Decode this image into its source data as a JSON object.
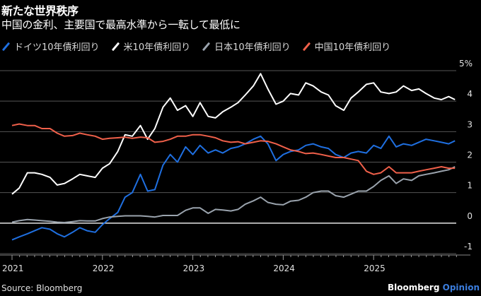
{
  "title": "新たな世界秩序",
  "subtitle": "中国の金利、主要国で最高水準から一転して最低に",
  "source": "Source: Bloomberg",
  "brand": {
    "name": "Bloomberg",
    "suffix": "Opinion"
  },
  "colors": {
    "germany": "#1f6fe0",
    "us": "#ffffff",
    "japan": "#9aa3ad",
    "china": "#f0604a",
    "grid": "#555555",
    "zero": "#e6e6e6",
    "brand_accent": "#3b7ddd"
  },
  "chart_data": {
    "type": "line",
    "title": "新たな世界秩序",
    "subtitle": "中国の金利、主要国で最高水準から一転して最低に",
    "xlabel": "",
    "ylabel": "%",
    "ylim": [
      -1,
      5
    ],
    "yticks": [
      "5%",
      "4",
      "3",
      "2",
      "1",
      "0",
      "-1"
    ],
    "ytick_values": [
      5,
      4,
      3,
      2,
      1,
      0,
      -1
    ],
    "xticks": [
      "2021",
      "2022",
      "2023",
      "2024",
      "2025"
    ],
    "xtick_values": [
      2021.0,
      2022.0,
      2023.0,
      2024.0,
      2025.0
    ],
    "xlim": [
      2020.9,
      2025.95
    ],
    "grid": true,
    "legend_position": "top-left",
    "x": [
      2021.0,
      2021.08,
      2021.17,
      2021.25,
      2021.33,
      2021.42,
      2021.5,
      2021.58,
      2021.67,
      2021.75,
      2021.83,
      2021.92,
      2022.0,
      2022.08,
      2022.17,
      2022.25,
      2022.33,
      2022.42,
      2022.5,
      2022.58,
      2022.67,
      2022.75,
      2022.83,
      2022.92,
      2023.0,
      2023.08,
      2023.17,
      2023.25,
      2023.33,
      2023.42,
      2023.5,
      2023.58,
      2023.67,
      2023.75,
      2023.83,
      2023.92,
      2024.0,
      2024.08,
      2024.17,
      2024.25,
      2024.33,
      2024.42,
      2024.5,
      2024.58,
      2024.67,
      2024.75,
      2024.83,
      2024.92,
      2025.0,
      2025.08,
      2025.17,
      2025.25,
      2025.33,
      2025.42,
      2025.5,
      2025.58,
      2025.67,
      2025.75,
      2025.83,
      2025.9
    ],
    "series": [
      {
        "name": "ドイツ10年債利回り",
        "key": "germany",
        "values": [
          -0.55,
          -0.45,
          -0.35,
          -0.25,
          -0.15,
          -0.2,
          -0.35,
          -0.45,
          -0.3,
          -0.15,
          -0.25,
          -0.3,
          -0.05,
          0.15,
          0.35,
          0.85,
          1.0,
          1.6,
          1.05,
          1.1,
          1.9,
          2.25,
          2.0,
          2.5,
          2.25,
          2.55,
          2.3,
          2.4,
          2.3,
          2.45,
          2.5,
          2.6,
          2.75,
          2.85,
          2.6,
          2.05,
          2.25,
          2.35,
          2.4,
          2.55,
          2.6,
          2.5,
          2.45,
          2.25,
          2.15,
          2.3,
          2.35,
          2.3,
          2.55,
          2.45,
          2.85,
          2.5,
          2.6,
          2.55,
          2.65,
          2.75,
          2.7,
          2.65,
          2.6,
          2.7
        ]
      },
      {
        "name": "米10年債利回り",
        "key": "us",
        "values": [
          0.95,
          1.15,
          1.65,
          1.65,
          1.6,
          1.5,
          1.25,
          1.3,
          1.45,
          1.6,
          1.55,
          1.5,
          1.8,
          1.95,
          2.35,
          2.9,
          2.85,
          3.2,
          2.75,
          3.1,
          3.8,
          4.1,
          3.7,
          3.85,
          3.5,
          3.95,
          3.5,
          3.45,
          3.65,
          3.8,
          3.95,
          4.2,
          4.5,
          4.9,
          4.4,
          3.9,
          4.0,
          4.25,
          4.2,
          4.6,
          4.5,
          4.3,
          4.2,
          3.85,
          3.7,
          4.1,
          4.3,
          4.55,
          4.6,
          4.3,
          4.25,
          4.3,
          4.5,
          4.35,
          4.4,
          4.25,
          4.1,
          4.05,
          4.15,
          4.05
        ]
      },
      {
        "name": "日本10年債利回り",
        "key": "japan",
        "values": [
          0.03,
          0.08,
          0.12,
          0.1,
          0.08,
          0.06,
          0.03,
          0.02,
          0.05,
          0.08,
          0.07,
          0.07,
          0.15,
          0.2,
          0.22,
          0.24,
          0.24,
          0.24,
          0.22,
          0.2,
          0.25,
          0.25,
          0.25,
          0.42,
          0.5,
          0.5,
          0.32,
          0.45,
          0.43,
          0.4,
          0.45,
          0.62,
          0.73,
          0.85,
          0.68,
          0.62,
          0.6,
          0.72,
          0.75,
          0.85,
          1.0,
          1.05,
          1.05,
          0.9,
          0.85,
          0.95,
          1.05,
          1.05,
          1.2,
          1.4,
          1.55,
          1.3,
          1.45,
          1.4,
          1.55,
          1.6,
          1.65,
          1.7,
          1.75,
          1.85
        ]
      },
      {
        "name": "中国10年債利回り",
        "key": "china",
        "values": [
          3.2,
          3.25,
          3.2,
          3.2,
          3.1,
          3.1,
          2.95,
          2.85,
          2.87,
          2.95,
          2.9,
          2.85,
          2.75,
          2.78,
          2.8,
          2.82,
          2.78,
          2.82,
          2.8,
          2.65,
          2.68,
          2.75,
          2.85,
          2.85,
          2.9,
          2.9,
          2.85,
          2.8,
          2.7,
          2.65,
          2.67,
          2.6,
          2.65,
          2.7,
          2.68,
          2.6,
          2.5,
          2.4,
          2.35,
          2.28,
          2.3,
          2.25,
          2.2,
          2.15,
          2.15,
          2.1,
          2.05,
          1.7,
          1.6,
          1.65,
          1.85,
          1.65,
          1.65,
          1.65,
          1.7,
          1.75,
          1.8,
          1.85,
          1.8,
          1.8
        ]
      }
    ]
  },
  "legend": [
    {
      "label": "ドイツ10年債利回り",
      "key": "germany"
    },
    {
      "label": "米10年債利回り",
      "key": "us"
    },
    {
      "label": "日本10年債利回り",
      "key": "japan"
    },
    {
      "label": "中国10年債利回り",
      "key": "china"
    }
  ]
}
